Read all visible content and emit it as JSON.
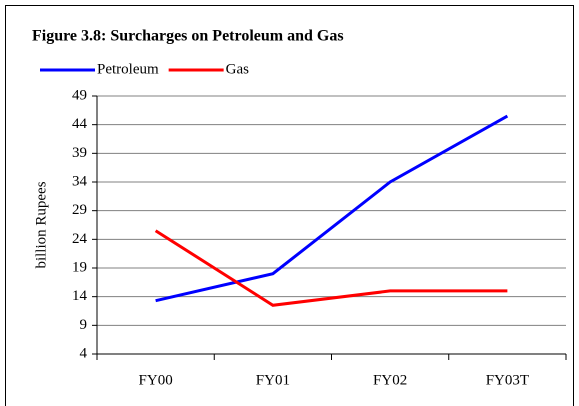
{
  "chart_data": {
    "type": "line",
    "title": "Figure 3.8: Surcharges on Petroleum and Gas",
    "y_label": "billion Rupees",
    "categories": [
      "FY00",
      "FY01",
      "FY02",
      "FY03T"
    ],
    "series": [
      {
        "name": "Petroleum",
        "color": "#0000ff",
        "values": [
          13.3,
          18,
          34,
          45.5
        ]
      },
      {
        "name": "Gas",
        "color": "#ff0000",
        "values": [
          25.5,
          12.5,
          15,
          15
        ]
      }
    ],
    "ylim": [
      4,
      49
    ],
    "yticks": [
      4,
      9,
      14,
      19,
      24,
      29,
      34,
      39,
      44,
      49
    ],
    "grid": true,
    "legend": "top"
  }
}
